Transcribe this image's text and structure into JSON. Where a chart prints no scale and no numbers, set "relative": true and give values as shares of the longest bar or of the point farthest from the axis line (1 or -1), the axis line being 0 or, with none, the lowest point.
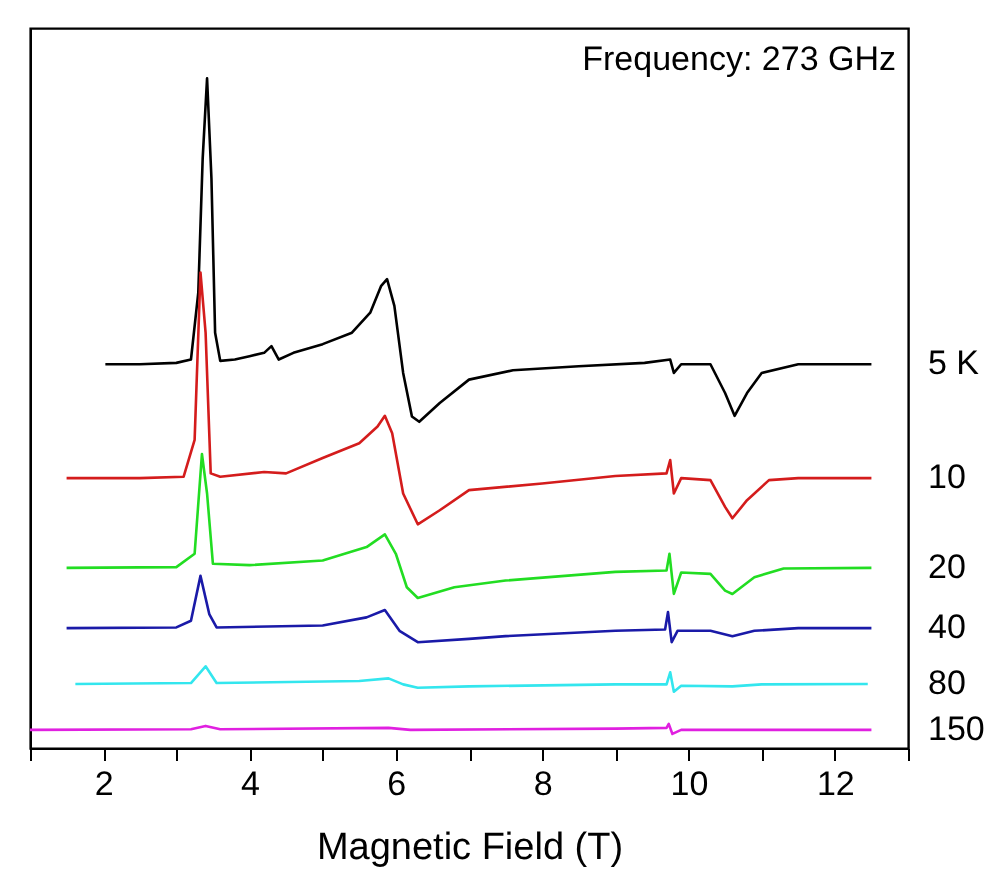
{
  "chart_data": {
    "type": "line",
    "relative": true,
    "xlabel": "Magnetic Field (T)",
    "annotations": [
      "Frequency: 273 GHz"
    ],
    "xlim": [
      1,
      13
    ],
    "xticks": [
      {
        "value": 1,
        "label": null
      },
      2,
      {
        "value": 3,
        "label": null
      },
      4,
      {
        "value": 5,
        "label": null
      },
      6,
      {
        "value": 7,
        "label": null
      },
      8,
      {
        "value": 9,
        "label": null
      },
      10,
      {
        "value": 11,
        "label": null
      },
      12,
      {
        "value": 13,
        "label": null
      }
    ],
    "tick_labels": "x",
    "grid": false,
    "legend": false,
    "marker": "none",
    "line_style": "solid",
    "series": [
      {
        "name": "5 K",
        "color": "#000000",
        "x": [
          2.03,
          2.5,
          3.0,
          3.2,
          3.3,
          3.36,
          3.42,
          3.48,
          3.53,
          3.6,
          3.8,
          4.0,
          4.2,
          4.3,
          4.4,
          4.6,
          5.0,
          5.4,
          5.65,
          5.8,
          5.88,
          5.98,
          6.1,
          6.22,
          6.32,
          6.6,
          7.0,
          7.6,
          8.5,
          9.4,
          9.75,
          9.8,
          9.9,
          10.3,
          10.5,
          10.63,
          10.8,
          11.0,
          11.5,
          12.0,
          12.5
        ],
        "values": [
          0.573,
          0.573,
          0.575,
          0.58,
          0.68,
          0.88,
          1.0,
          0.85,
          0.62,
          0.578,
          0.58,
          0.585,
          0.59,
          0.6,
          0.58,
          0.59,
          0.603,
          0.62,
          0.65,
          0.69,
          0.7,
          0.66,
          0.56,
          0.495,
          0.487,
          0.515,
          0.55,
          0.564,
          0.57,
          0.575,
          0.58,
          0.56,
          0.573,
          0.573,
          0.53,
          0.496,
          0.53,
          0.56,
          0.573,
          0.573,
          0.573
        ]
      },
      {
        "name": "10",
        "color": "#d41c1c",
        "x": [
          1.5,
          2.5,
          3.1,
          3.25,
          3.33,
          3.4,
          3.47,
          3.6,
          4.2,
          4.5,
          5.0,
          5.5,
          5.75,
          5.85,
          5.95,
          6.1,
          6.3,
          6.6,
          7.0,
          8.0,
          9.0,
          9.7,
          9.75,
          9.8,
          9.9,
          10.3,
          10.5,
          10.6,
          10.8,
          11.1,
          11.5,
          12.5
        ],
        "values": [
          0.403,
          0.403,
          0.405,
          0.46,
          0.71,
          0.62,
          0.41,
          0.405,
          0.412,
          0.41,
          0.433,
          0.455,
          0.48,
          0.496,
          0.47,
          0.38,
          0.334,
          0.355,
          0.385,
          0.395,
          0.406,
          0.41,
          0.43,
          0.38,
          0.403,
          0.4,
          0.36,
          0.343,
          0.37,
          0.4,
          0.403,
          0.403
        ]
      },
      {
        "name": "20",
        "color": "#22dd22",
        "x": [
          1.5,
          3.0,
          3.25,
          3.35,
          3.42,
          3.5,
          4.0,
          5.0,
          5.6,
          5.85,
          6.0,
          6.15,
          6.3,
          6.8,
          7.5,
          9.0,
          9.7,
          9.74,
          9.8,
          9.9,
          10.3,
          10.5,
          10.6,
          10.9,
          11.3,
          12.5
        ],
        "values": [
          0.269,
          0.27,
          0.29,
          0.439,
          0.38,
          0.275,
          0.273,
          0.28,
          0.3,
          0.319,
          0.29,
          0.24,
          0.224,
          0.24,
          0.25,
          0.263,
          0.265,
          0.29,
          0.23,
          0.262,
          0.26,
          0.235,
          0.23,
          0.255,
          0.268,
          0.269
        ]
      },
      {
        "name": "40",
        "color": "#1a1aa8",
        "x": [
          1.5,
          3.0,
          3.2,
          3.33,
          3.45,
          3.55,
          5.0,
          5.6,
          5.85,
          6.05,
          6.3,
          7.0,
          7.5,
          9.0,
          9.68,
          9.72,
          9.77,
          9.85,
          10.3,
          10.6,
          10.9,
          11.5,
          12.5
        ],
        "values": [
          0.179,
          0.18,
          0.19,
          0.257,
          0.2,
          0.18,
          0.183,
          0.195,
          0.206,
          0.175,
          0.158,
          0.163,
          0.167,
          0.175,
          0.177,
          0.203,
          0.158,
          0.175,
          0.175,
          0.167,
          0.175,
          0.179,
          0.179
        ]
      },
      {
        "name": "80",
        "color": "#33e6ee",
        "x": [
          1.62,
          3.2,
          3.4,
          3.55,
          5.5,
          5.9,
          6.1,
          6.3,
          7.0,
          9.0,
          9.7,
          9.75,
          9.8,
          9.9,
          10.6,
          11.0,
          12.45
        ],
        "values": [
          0.0955,
          0.097,
          0.122,
          0.097,
          0.1,
          0.104,
          0.095,
          0.09,
          0.092,
          0.095,
          0.095,
          0.113,
          0.084,
          0.093,
          0.092,
          0.095,
          0.0955
        ]
      },
      {
        "name": "150",
        "color": "#e020e0",
        "x": [
          1.0,
          3.2,
          3.4,
          3.6,
          5.9,
          6.2,
          9.0,
          9.7,
          9.73,
          9.78,
          9.9,
          12.5
        ],
        "values": [
          0.027,
          0.028,
          0.033,
          0.028,
          0.03,
          0.027,
          0.029,
          0.03,
          0.036,
          0.021,
          0.027,
          0.027
        ]
      }
    ]
  }
}
